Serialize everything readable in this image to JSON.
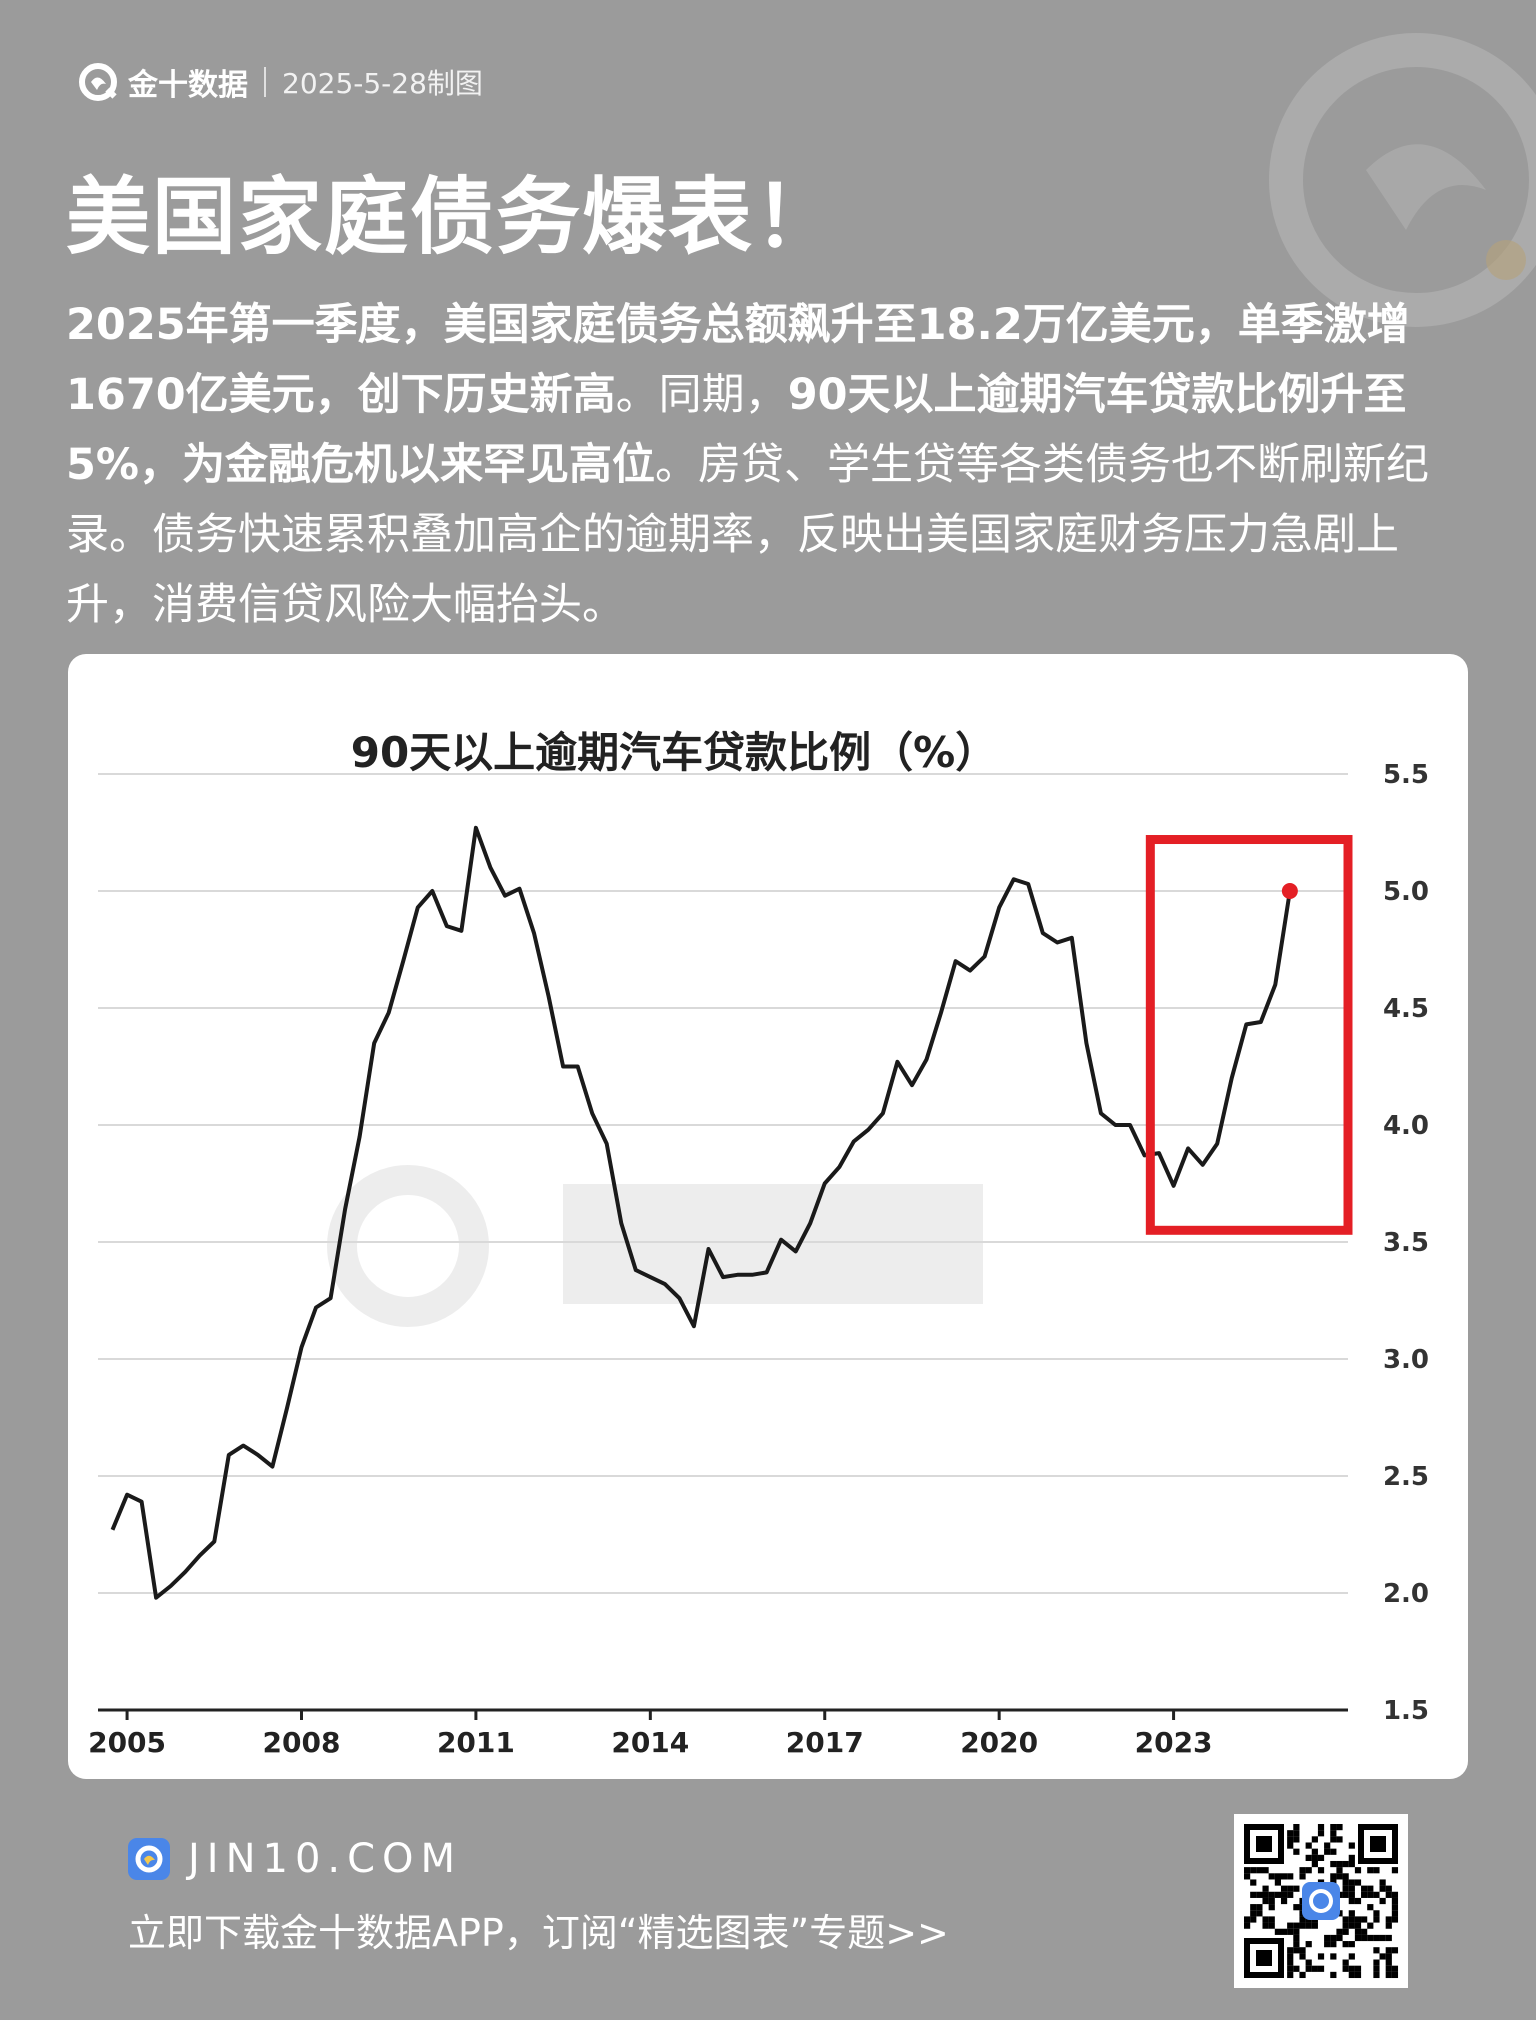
{
  "brand": {
    "name": "金十数据",
    "icon": "jin10-logo-icon"
  },
  "header": {
    "date": "2025-5-28制图"
  },
  "title": "美国家庭债务爆表！",
  "summary": {
    "p1": "2025年第一季度，美国家庭债务总额飙升至18.2万亿美元，单季激增1670亿美元，创下历史新高",
    "p2": "。同期，",
    "p3": "90天以上逾期汽车贷款比例升至5%，为金融危机以来罕见高位",
    "p4": "。房贷、学生贷等各类债务也不断刷新纪录。债务快速累积叠加高企的逾期率，反映出美国家庭财务压力急剧上升，消费信贷风险大幅抬头。"
  },
  "chart_data": {
    "type": "line",
    "title": "90天以上逾期汽车贷款比例（%）",
    "xlabel": "",
    "ylabel": "",
    "xlim": [
      2004.5,
      2026.0
    ],
    "ylim": [
      1.5,
      5.5
    ],
    "yticks": [
      "1.5",
      "2.0",
      "2.5",
      "3.0",
      "3.5",
      "4.0",
      "4.5",
      "5.0",
      "5.5"
    ],
    "xticks": [
      "2005",
      "2008",
      "2011",
      "2014",
      "2017",
      "2020",
      "2023"
    ],
    "y_axis_position": "right",
    "grid": true,
    "highlight_box": {
      "x": [
        2022.6,
        2026.0
      ],
      "y": [
        3.55,
        5.22
      ],
      "color": "#e41f25"
    },
    "end_marker": {
      "x": 2025.0,
      "y": 5.0,
      "color": "#e41f25"
    },
    "series": [
      {
        "color": "#1a1a1a",
        "points": [
          [
            2004.75,
            2.27
          ],
          [
            2005.0,
            2.42
          ],
          [
            2005.25,
            2.39
          ],
          [
            2005.5,
            1.98
          ],
          [
            2005.75,
            2.03
          ],
          [
            2006.0,
            2.09
          ],
          [
            2006.25,
            2.16
          ],
          [
            2006.5,
            2.22
          ],
          [
            2006.75,
            2.59
          ],
          [
            2007.0,
            2.63
          ],
          [
            2007.25,
            2.59
          ],
          [
            2007.5,
            2.54
          ],
          [
            2007.75,
            2.79
          ],
          [
            2008.0,
            3.05
          ],
          [
            2008.25,
            3.22
          ],
          [
            2008.5,
            3.26
          ],
          [
            2008.75,
            3.64
          ],
          [
            2009.0,
            3.95
          ],
          [
            2009.25,
            4.35
          ],
          [
            2009.5,
            4.48
          ],
          [
            2009.75,
            4.7
          ],
          [
            2010.0,
            4.93
          ],
          [
            2010.25,
            5.0
          ],
          [
            2010.5,
            4.85
          ],
          [
            2010.75,
            4.83
          ],
          [
            2011.0,
            5.27
          ],
          [
            2011.25,
            5.1
          ],
          [
            2011.5,
            4.98
          ],
          [
            2011.75,
            5.01
          ],
          [
            2012.0,
            4.82
          ],
          [
            2012.25,
            4.55
          ],
          [
            2012.5,
            4.25
          ],
          [
            2012.75,
            4.25
          ],
          [
            2013.0,
            4.05
          ],
          [
            2013.25,
            3.92
          ],
          [
            2013.5,
            3.58
          ],
          [
            2013.75,
            3.38
          ],
          [
            2014.0,
            3.35
          ],
          [
            2014.25,
            3.32
          ],
          [
            2014.5,
            3.26
          ],
          [
            2014.75,
            3.14
          ],
          [
            2015.0,
            3.47
          ],
          [
            2015.25,
            3.35
          ],
          [
            2015.5,
            3.36
          ],
          [
            2015.75,
            3.36
          ],
          [
            2016.0,
            3.37
          ],
          [
            2016.25,
            3.51
          ],
          [
            2016.5,
            3.46
          ],
          [
            2016.75,
            3.58
          ],
          [
            2017.0,
            3.75
          ],
          [
            2017.25,
            3.82
          ],
          [
            2017.5,
            3.93
          ],
          [
            2017.75,
            3.98
          ],
          [
            2018.0,
            4.05
          ],
          [
            2018.25,
            4.27
          ],
          [
            2018.5,
            4.17
          ],
          [
            2018.75,
            4.28
          ],
          [
            2019.0,
            4.48
          ],
          [
            2019.25,
            4.7
          ],
          [
            2019.5,
            4.66
          ],
          [
            2019.75,
            4.72
          ],
          [
            2020.0,
            4.93
          ],
          [
            2020.25,
            5.05
          ],
          [
            2020.5,
            5.03
          ],
          [
            2020.75,
            4.82
          ],
          [
            2021.0,
            4.78
          ],
          [
            2021.25,
            4.8
          ],
          [
            2021.5,
            4.35
          ],
          [
            2021.75,
            4.05
          ],
          [
            2022.0,
            4.0
          ],
          [
            2022.25,
            4.0
          ],
          [
            2022.5,
            3.87
          ],
          [
            2022.75,
            3.88
          ],
          [
            2023.0,
            3.74
          ],
          [
            2023.25,
            3.9
          ],
          [
            2023.5,
            3.83
          ],
          [
            2023.75,
            3.92
          ],
          [
            2024.0,
            4.2
          ],
          [
            2024.25,
            4.43
          ],
          [
            2024.5,
            4.44
          ],
          [
            2024.75,
            4.6
          ],
          [
            2025.0,
            5.0
          ]
        ]
      }
    ]
  },
  "footer": {
    "site": "JIN10.COM",
    "cta": "立即下载金十数据APP，订阅“精选图表”专题>>"
  }
}
